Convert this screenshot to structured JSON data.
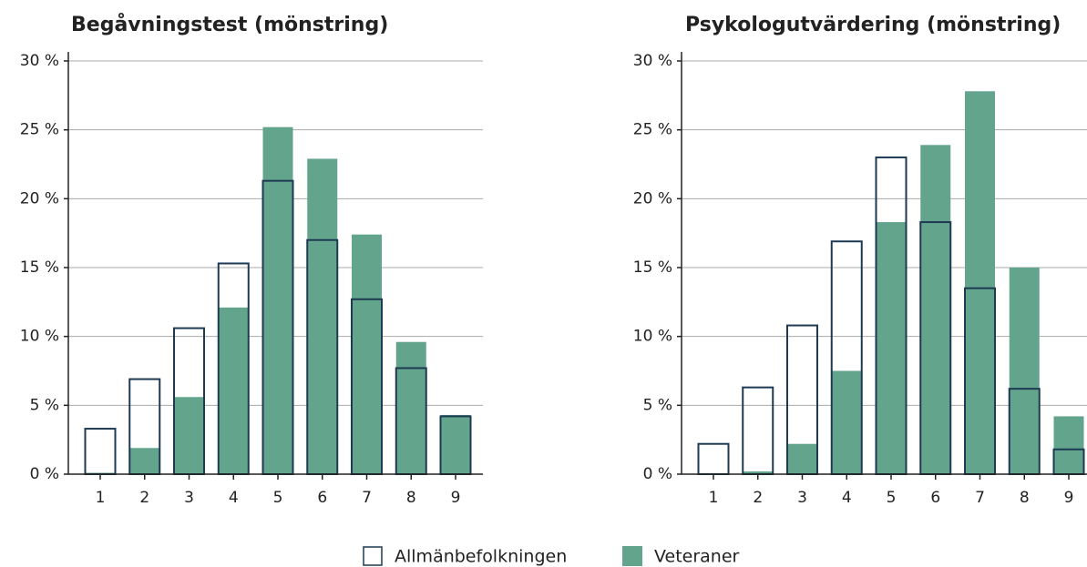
{
  "chart_data": [
    {
      "type": "bar",
      "title": "Begåvningstest (mönstring)",
      "categories": [
        "1",
        "2",
        "3",
        "4",
        "5",
        "6",
        "7",
        "8",
        "9"
      ],
      "series": [
        {
          "color": "#63a48c",
          "style": "filled",
          "values": [
            0.1,
            1.9,
            5.6,
            12.1,
            25.2,
            22.9,
            17.4,
            9.6,
            4.3
          ]
        },
        {
          "color": "#1e3a52",
          "style": "outline",
          "values": [
            3.3,
            6.9,
            10.6,
            15.3,
            21.3,
            17.0,
            12.7,
            7.7,
            4.2
          ]
        }
      ],
      "ylim": [
        0,
        30
      ],
      "yticks": [
        {
          "value": 0,
          "label": "0 %"
        },
        {
          "value": 5,
          "label": "5 %"
        },
        {
          "value": 10,
          "label": "10 %"
        },
        {
          "value": 15,
          "label": "15 %"
        },
        {
          "value": 20,
          "label": "20 %"
        },
        {
          "value": 25,
          "label": "25 %"
        },
        {
          "value": 30,
          "label": "30 %"
        }
      ],
      "grid": true
    },
    {
      "type": "bar",
      "title": "Psykologutvärdering (mönstring)",
      "categories": [
        "1",
        "2",
        "3",
        "4",
        "5",
        "6",
        "7",
        "8",
        "9"
      ],
      "series": [
        {
          "color": "#63a48c",
          "style": "filled",
          "values": [
            0,
            0.2,
            2.2,
            7.5,
            18.3,
            23.9,
            27.8,
            15.0,
            4.2
          ]
        },
        {
          "color": "#1e3a52",
          "style": "outline",
          "values": [
            2.2,
            6.3,
            10.8,
            16.9,
            23.0,
            18.3,
            13.5,
            6.2,
            1.8
          ]
        }
      ],
      "ylim": [
        0,
        30
      ],
      "yticks": [
        {
          "value": 0,
          "label": "0 %"
        },
        {
          "value": 5,
          "label": "5 %"
        },
        {
          "value": 10,
          "label": "10 %"
        },
        {
          "value": 15,
          "label": "15 %"
        },
        {
          "value": 20,
          "label": "20 %"
        },
        {
          "value": 25,
          "label": "25 %"
        },
        {
          "value": 30,
          "label": "30 %"
        }
      ],
      "grid": true
    }
  ],
  "legend": [
    {
      "name": "Allmänbefolkningen",
      "color": "#1e3a52",
      "style": "outline"
    },
    {
      "name": "Veteraner",
      "color": "#63a48c",
      "style": "filled"
    }
  ]
}
